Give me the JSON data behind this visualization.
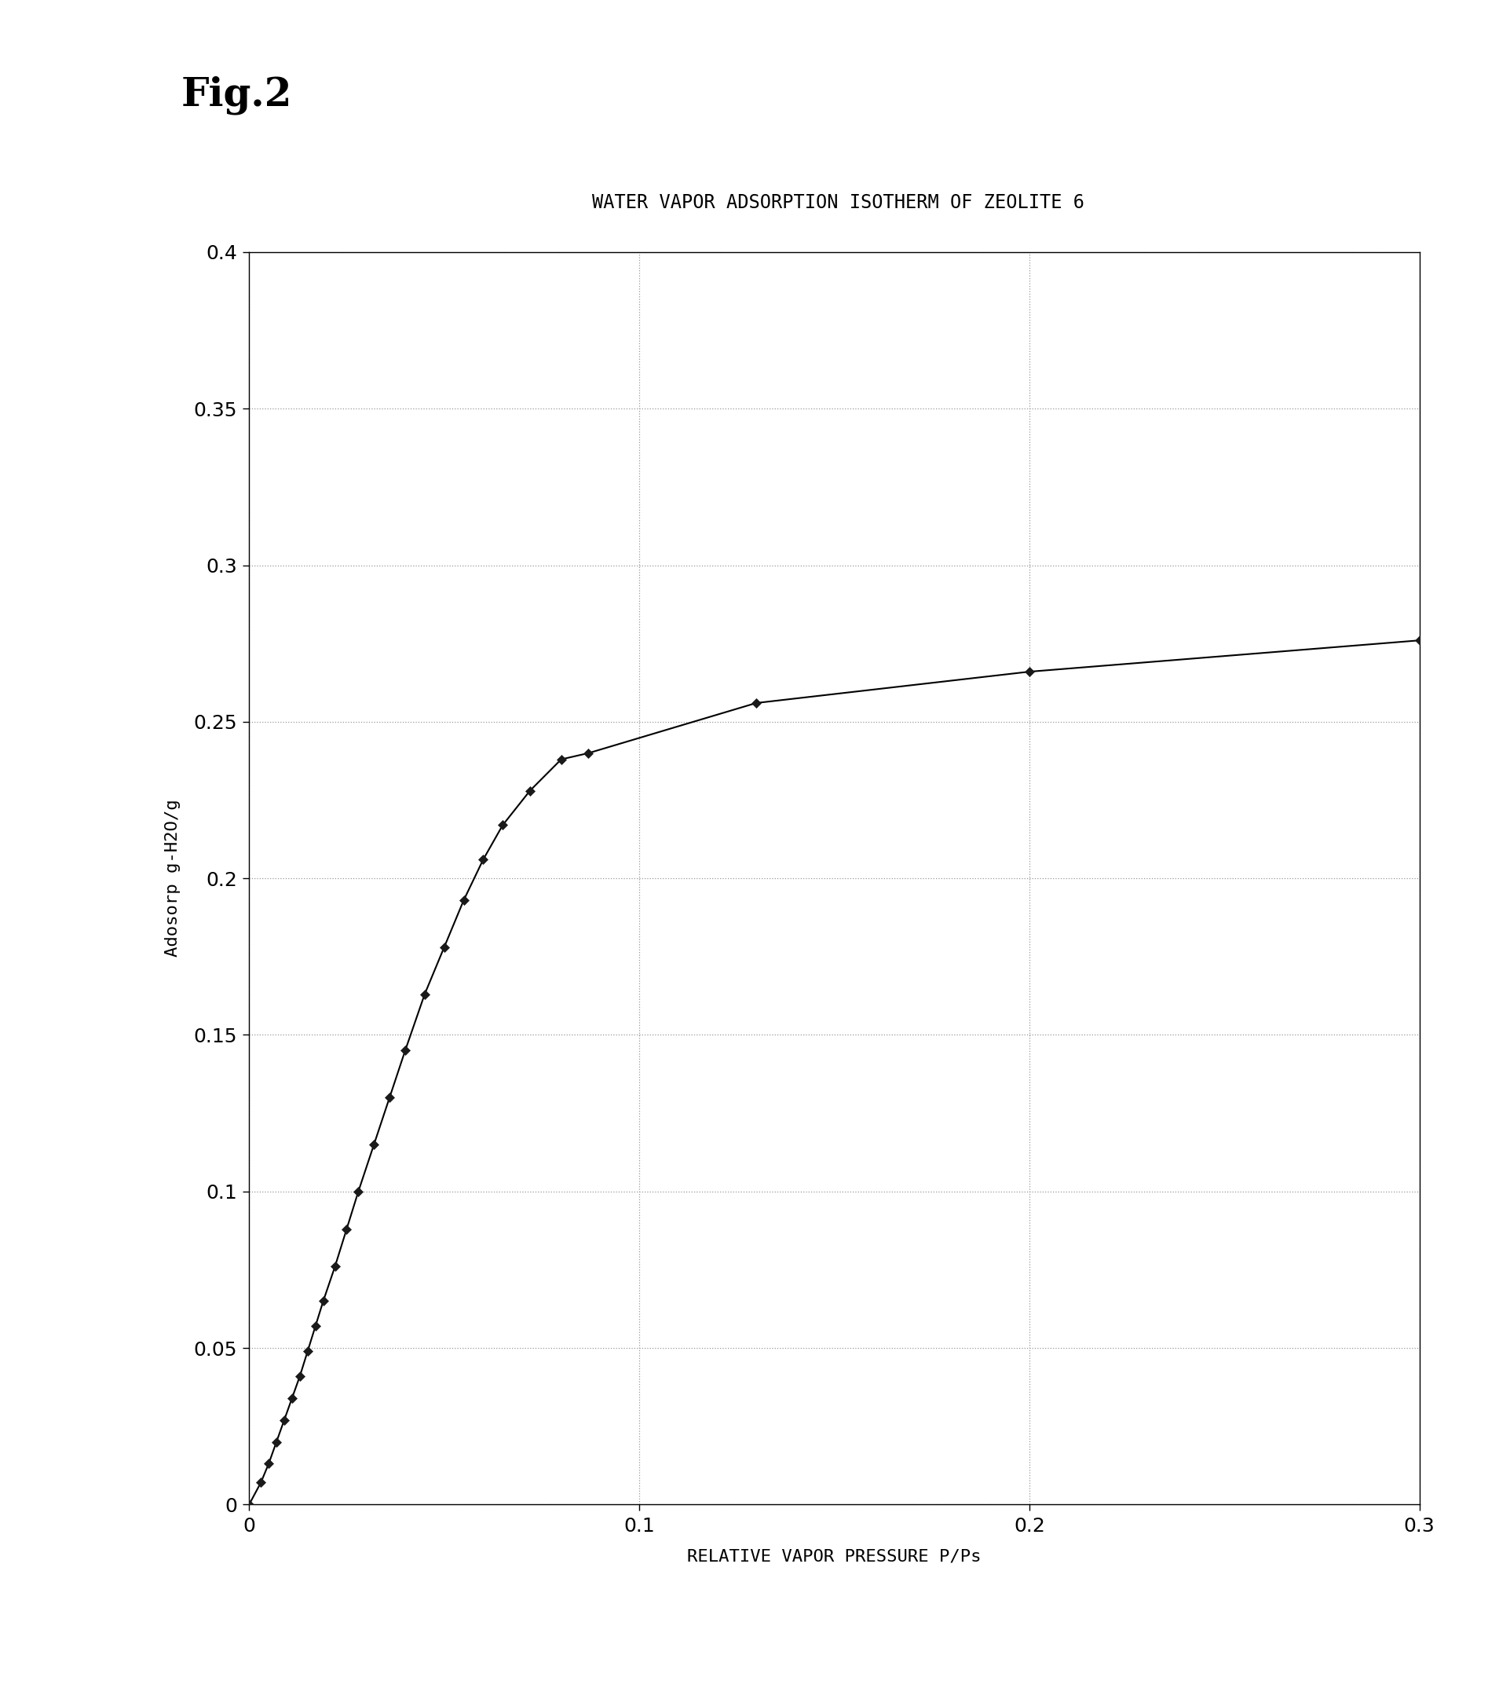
{
  "title_fig": "Fig.2",
  "title_chart": "WATER VAPOR ADSORPTION ISOTHERM OF ZEOLITE 6",
  "xlabel": "RELATIVE VAPOR PRESSURE P/Ps",
  "ylabel": "Adosorp g-H2O/g",
  "xlim": [
    0,
    0.3
  ],
  "ylim": [
    0,
    0.4
  ],
  "xticks": [
    0,
    0.1,
    0.2,
    0.3
  ],
  "yticks": [
    0,
    0.05,
    0.1,
    0.15,
    0.2,
    0.25,
    0.3,
    0.35,
    0.4
  ],
  "x_data": [
    0.0,
    0.003,
    0.005,
    0.007,
    0.009,
    0.011,
    0.013,
    0.015,
    0.017,
    0.019,
    0.022,
    0.025,
    0.028,
    0.032,
    0.036,
    0.04,
    0.045,
    0.05,
    0.055,
    0.06,
    0.065,
    0.072,
    0.08,
    0.087,
    0.13,
    0.2,
    0.3
  ],
  "y_data": [
    0.0,
    0.007,
    0.013,
    0.02,
    0.027,
    0.034,
    0.041,
    0.049,
    0.057,
    0.065,
    0.076,
    0.088,
    0.1,
    0.115,
    0.13,
    0.145,
    0.163,
    0.178,
    0.193,
    0.206,
    0.217,
    0.228,
    0.238,
    0.24,
    0.256,
    0.266,
    0.276
  ],
  "line_color": "#000000",
  "marker_color": "#1a1a1a",
  "background_color": "#ffffff",
  "grid_color": "#999999",
  "fig_title_fontsize": 36,
  "chart_title_fontsize": 17,
  "axis_label_fontsize": 16,
  "tick_label_fontsize": 18
}
